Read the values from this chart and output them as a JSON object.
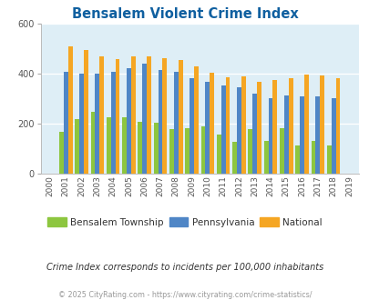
{
  "title": "Bensalem Violent Crime Index",
  "years": [
    2000,
    2001,
    2002,
    2003,
    2004,
    2005,
    2006,
    2007,
    2008,
    2009,
    2010,
    2011,
    2012,
    2013,
    2014,
    2015,
    2016,
    2017,
    2018,
    2019
  ],
  "bensalem": [
    0,
    168,
    218,
    248,
    228,
    228,
    210,
    205,
    178,
    185,
    190,
    158,
    130,
    178,
    133,
    183,
    115,
    133,
    115,
    0
  ],
  "pennsylvania": [
    0,
    410,
    403,
    400,
    410,
    422,
    440,
    415,
    408,
    385,
    367,
    355,
    348,
    322,
    305,
    313,
    310,
    312,
    303,
    0
  ],
  "national": [
    0,
    510,
    497,
    471,
    460,
    469,
    472,
    464,
    456,
    430,
    404,
    388,
    390,
    368,
    375,
    382,
    398,
    394,
    382,
    0
  ],
  "bar_width": 0.28,
  "color_bensalem": "#8dc63f",
  "color_pennsylvania": "#4f86c6",
  "color_national": "#f5a623",
  "plot_bg": "#deeef6",
  "ylim": [
    0,
    600
  ],
  "yticks": [
    0,
    200,
    400,
    600
  ],
  "legend_labels": [
    "Bensalem Township",
    "Pennsylvania",
    "National"
  ],
  "subtitle": "Crime Index corresponds to incidents per 100,000 inhabitants",
  "footer": "© 2025 CityRating.com - https://www.cityrating.com/crime-statistics/",
  "title_color": "#1060a0",
  "subtitle_color": "#333333",
  "footer_color": "#999999"
}
